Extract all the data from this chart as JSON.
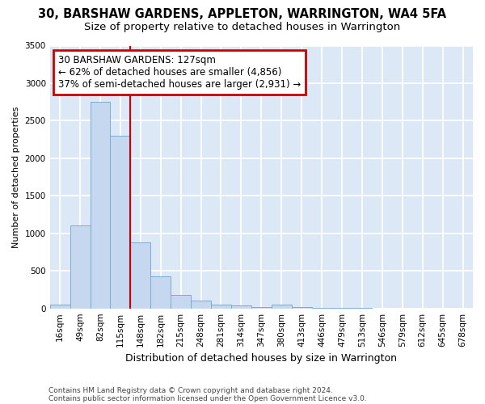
{
  "title1": "30, BARSHAW GARDENS, APPLETON, WARRINGTON, WA4 5FA",
  "title2": "Size of property relative to detached houses in Warrington",
  "xlabel": "Distribution of detached houses by size in Warrington",
  "ylabel": "Number of detached properties",
  "categories": [
    "16sqm",
    "49sqm",
    "82sqm",
    "115sqm",
    "148sqm",
    "182sqm",
    "215sqm",
    "248sqm",
    "281sqm",
    "314sqm",
    "347sqm",
    "380sqm",
    "413sqm",
    "446sqm",
    "479sqm",
    "513sqm",
    "546sqm",
    "579sqm",
    "612sqm",
    "645sqm",
    "678sqm"
  ],
  "values": [
    45,
    1100,
    2750,
    2300,
    880,
    430,
    180,
    100,
    55,
    35,
    20,
    55,
    15,
    5,
    3,
    2,
    1,
    1,
    1,
    1,
    1
  ],
  "bar_color": "#c5d8f0",
  "bar_edge_color": "#7aadd4",
  "annotation_text": "30 BARSHAW GARDENS: 127sqm\n← 62% of detached houses are smaller (4,856)\n37% of semi-detached houses are larger (2,931) →",
  "annotation_box_color": "#ffffff",
  "annotation_box_edge": "#cc0000",
  "vline_color": "#cc0000",
  "ylim": [
    0,
    3500
  ],
  "yticks": [
    0,
    500,
    1000,
    1500,
    2000,
    2500,
    3000,
    3500
  ],
  "bg_color": "#ffffff",
  "plot_bg_color": "#dce8f5",
  "grid_color": "#ffffff",
  "footer1": "Contains HM Land Registry data © Crown copyright and database right 2024.",
  "footer2": "Contains public sector information licensed under the Open Government Licence v3.0.",
  "title1_fontsize": 10.5,
  "title2_fontsize": 9.5,
  "xlabel_fontsize": 9,
  "ylabel_fontsize": 8,
  "tick_fontsize": 7.5,
  "footer_fontsize": 6.5,
  "annotation_fontsize": 8.5
}
